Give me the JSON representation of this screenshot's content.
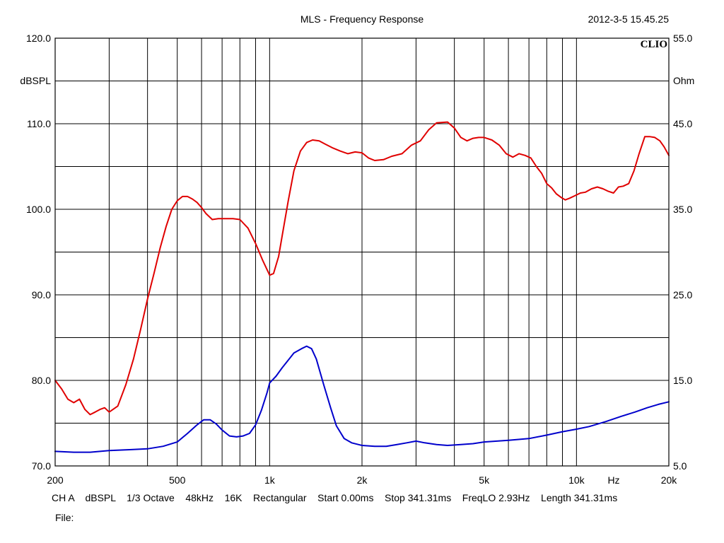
{
  "header": {
    "title": "MLS - Frequency Response",
    "timestamp": "2012-3-5 15.45.25",
    "brand": "CLIO"
  },
  "footer": {
    "settings": "CH A    dBSPL    1/3 Octave    48kHz    16K    Rectangular    Start 0.00ms    Stop 341.31ms    FreqLO 2.93Hz    Length 341.31ms",
    "file_label": "File:"
  },
  "chart_data": {
    "type": "line",
    "title": "MLS - Frequency Response",
    "xlabel": "Hz",
    "ylabel": "dBSPL",
    "y2label": "Ohm",
    "x_scale": "log",
    "xlim": [
      200,
      20000
    ],
    "ylim": [
      70,
      120
    ],
    "y2lim": [
      5,
      55
    ],
    "grid": true,
    "x_ticks": [
      {
        "value": 200,
        "label": "200"
      },
      {
        "value": 500,
        "label": "500"
      },
      {
        "value": 1000,
        "label": "1k"
      },
      {
        "value": 2000,
        "label": "2k"
      },
      {
        "value": 5000,
        "label": "5k"
      },
      {
        "value": 10000,
        "label": "10k"
      },
      {
        "value": 20000,
        "label": "20k"
      }
    ],
    "x_gridlines": [
      300,
      400,
      500,
      600,
      700,
      800,
      900,
      1000,
      2000,
      3000,
      4000,
      5000,
      6000,
      7000,
      8000,
      9000,
      10000
    ],
    "y_ticks": [
      {
        "value": 120,
        "label": "120.0"
      },
      {
        "value": 110,
        "label": "110.0"
      },
      {
        "value": 100,
        "label": "100.0"
      },
      {
        "value": 90,
        "label": "90.0"
      },
      {
        "value": 80,
        "label": "80.0"
      },
      {
        "value": 70,
        "label": "70.0"
      }
    ],
    "y_gridlines": [
      75,
      80,
      85,
      90,
      95,
      100,
      105,
      110,
      115
    ],
    "y2_ticks": [
      {
        "value": 55,
        "label": "55.0"
      },
      {
        "value": 45,
        "label": "45.0"
      },
      {
        "value": 35,
        "label": "35.0"
      },
      {
        "value": 25,
        "label": "25.0"
      },
      {
        "value": 15,
        "label": "15.0"
      },
      {
        "value": 5,
        "label": "5.0"
      }
    ],
    "series": [
      {
        "axis": "left",
        "color": "#e00000",
        "x": [
          200,
          210,
          220,
          230,
          240,
          250,
          260,
          270,
          280,
          290,
          300,
          320,
          340,
          360,
          380,
          400,
          420,
          440,
          460,
          480,
          500,
          520,
          540,
          560,
          580,
          600,
          620,
          650,
          680,
          720,
          760,
          800,
          850,
          900,
          950,
          1000,
          1030,
          1070,
          1100,
          1150,
          1200,
          1260,
          1320,
          1380,
          1450,
          1520,
          1600,
          1700,
          1800,
          1900,
          2000,
          2100,
          2200,
          2350,
          2500,
          2700,
          2900,
          3100,
          3300,
          3500,
          3800,
          4000,
          4200,
          4400,
          4600,
          4800,
          5000,
          5300,
          5600,
          5900,
          6200,
          6500,
          6800,
          7100,
          7400,
          7700,
          8000,
          8300,
          8600,
          8900,
          9200,
          9500,
          9900,
          10300,
          10700,
          11200,
          11700,
          12200,
          12700,
          13200,
          13700,
          14200,
          14800,
          15400,
          16000,
          16700,
          17300,
          18000,
          18700,
          19300,
          20000
        ],
        "y": [
          80.0,
          79.0,
          77.8,
          77.4,
          77.8,
          76.6,
          76.0,
          76.3,
          76.6,
          76.8,
          76.3,
          77.0,
          79.5,
          82.5,
          86.0,
          89.5,
          92.5,
          95.5,
          98.0,
          100.0,
          101.0,
          101.5,
          101.5,
          101.2,
          100.8,
          100.2,
          99.5,
          98.8,
          98.9,
          98.9,
          98.9,
          98.8,
          97.8,
          96.0,
          94.0,
          92.3,
          92.5,
          94.5,
          97.0,
          101.0,
          104.5,
          106.8,
          107.8,
          108.1,
          108.0,
          107.6,
          107.2,
          106.8,
          106.5,
          106.7,
          106.6,
          106.0,
          105.7,
          105.8,
          106.2,
          106.5,
          107.5,
          108.0,
          109.3,
          110.1,
          110.2,
          109.5,
          108.4,
          108.0,
          108.3,
          108.4,
          108.4,
          108.1,
          107.5,
          106.5,
          106.1,
          106.5,
          106.3,
          106.0,
          105.0,
          104.2,
          103.0,
          102.5,
          101.8,
          101.4,
          101.1,
          101.3,
          101.6,
          101.9,
          102.0,
          102.4,
          102.6,
          102.4,
          102.1,
          101.9,
          102.6,
          102.7,
          103.0,
          104.5,
          106.5,
          108.5,
          108.5,
          108.4,
          108.0,
          107.3,
          106.3
        ]
      },
      {
        "axis": "right",
        "color": "#0000cc",
        "x": [
          200,
          230,
          260,
          300,
          350,
          400,
          450,
          500,
          540,
          580,
          610,
          640,
          670,
          700,
          740,
          780,
          820,
          860,
          900,
          940,
          980,
          1000,
          1050,
          1100,
          1200,
          1270,
          1320,
          1370,
          1420,
          1500,
          1580,
          1650,
          1750,
          1850,
          2000,
          2200,
          2400,
          2600,
          2800,
          3000,
          3200,
          3500,
          3800,
          4200,
          4600,
          5000,
          5500,
          6000,
          7000,
          8000,
          9000,
          10000,
          11000,
          12500,
          14000,
          15500,
          17000,
          18500,
          20000
        ],
        "y": [
          6.7,
          6.6,
          6.6,
          6.8,
          6.9,
          7.0,
          7.3,
          7.8,
          8.8,
          9.8,
          10.4,
          10.4,
          9.9,
          9.2,
          8.5,
          8.4,
          8.5,
          8.8,
          9.8,
          11.5,
          13.5,
          14.7,
          15.5,
          16.5,
          18.2,
          18.7,
          19.0,
          18.7,
          17.5,
          14.5,
          11.8,
          9.7,
          8.2,
          7.7,
          7.4,
          7.3,
          7.3,
          7.5,
          7.7,
          7.9,
          7.7,
          7.5,
          7.4,
          7.5,
          7.6,
          7.8,
          7.9,
          8.0,
          8.2,
          8.6,
          9.0,
          9.3,
          9.6,
          10.2,
          10.8,
          11.3,
          11.8,
          12.2,
          12.5
        ]
      }
    ]
  }
}
